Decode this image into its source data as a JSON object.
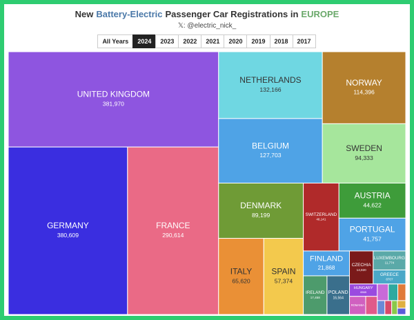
{
  "chart_data": {
    "type": "treemap",
    "title": [
      "New",
      "Battery-Electric",
      "Passenger Car Registrations in",
      "EUROPE"
    ],
    "subtitle": "𝕏: @electric_nick_",
    "tabs": [
      "All Years",
      "2024",
      "2023",
      "2022",
      "2021",
      "2020",
      "2019",
      "2018",
      "2017"
    ],
    "active_tab": "2024",
    "categories": [
      "UNITED KINGDOM",
      "GERMANY",
      "FRANCE",
      "NETHERLANDS",
      "BELGIUM",
      "NORWAY",
      "SWEDEN",
      "DENMARK",
      "ITALY",
      "SPAIN",
      "SWITZERLAND",
      "AUSTRIA",
      "PORTUGAL",
      "FINLAND",
      "IRELAND",
      "POLAND",
      "CZECHIA",
      "LUXEMBOURG",
      "GREECE",
      "HUNGARY",
      "ROMANIA",
      null,
      null,
      null,
      null,
      null,
      null,
      null,
      null,
      null
    ],
    "values": [
      381970,
      380609,
      290614,
      132166,
      127703,
      114396,
      94333,
      89199,
      65620,
      57374,
      46141,
      44622,
      41757,
      21868,
      17458,
      16564,
      14920,
      11774,
      8707,
      6565,
      5600,
      4000,
      3500,
      3000,
      2500,
      2000,
      1800,
      1500,
      1200,
      1000
    ],
    "value_labels": [
      "381,970",
      "380,609",
      "290,614",
      "132,166",
      "127,703",
      "114,396",
      "94,333",
      "89,199",
      "65,620",
      "57,374",
      "46,141",
      "44,622",
      "41,757",
      "21,868",
      "17,458",
      "16,564",
      "14,920",
      "11,774",
      "8707",
      "6565",
      null,
      null,
      null,
      null,
      null,
      null,
      null,
      null,
      null,
      null
    ],
    "colors": [
      "#8e55e0",
      "#3a2ee0",
      "#ea6a86",
      "#6fd7e2",
      "#4fa3e6",
      "#b5802e",
      "#a6e69c",
      "#6f9b36",
      "#ea9036",
      "#f3c94d",
      "#b02a2a",
      "#3e9c3a",
      "#4fa3e6",
      "#4fa3e6",
      "#4d9b6c",
      "#3a6f8c",
      "#7a1a1a",
      "#5aa9a8",
      "#4aa8c8",
      "#9a4ae0",
      "#d060c0",
      "#e05a8a",
      "#c86ad8",
      "#2ea9a0",
      "#e07a3a",
      "#6a8ad8",
      "#d84a6a",
      "#8ac84a",
      "#e0b040",
      "#5a5ad8"
    ]
  }
}
